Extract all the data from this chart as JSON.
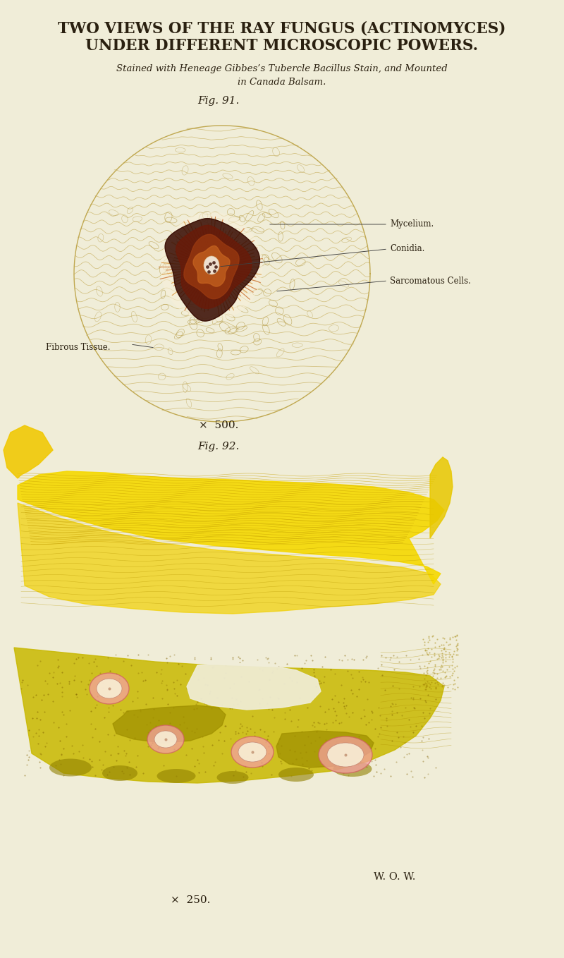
{
  "bg_color": "#f0edd8",
  "title_line1": "TWO VIEWS OF THE RAY FUNGUS (ACTINOMYCES)",
  "title_line2": "UNDER DIFFERENT MICROSCOPIC POWERS.",
  "subtitle_line1": "Stained with Heneage Gibbes’s Tubercle Bacillus Stain, and Mounted",
  "subtitle_line2": "in Canada Balsam.",
  "fig91_label": "Fig. 91.",
  "fig92_label": "Fig. 92.",
  "magnification1": "×  500.",
  "magnification2": "×  250.",
  "credit": "W. O. W.",
  "text_color": "#2a2010",
  "line_color": "#9a8a50",
  "fungus_dark": "#3a0f05",
  "fungus_maroon": "#6a1a08",
  "fungus_brown": "#9b3a10",
  "fungus_orange": "#c86520",
  "fungus_gold": "#d89030",
  "fungus_center": "#f5ede0",
  "circle_color": "#c0a850",
  "wave_color": "#c8b060",
  "cell_color": "#b8a050",
  "yellow_bright": "#f5d800",
  "yellow_mid": "#e8c800",
  "yellow_dark": "#c8a800",
  "yellow_green": "#b8b010",
  "olive_green": "#909000",
  "pink_colony": "#f08080",
  "pink_ring": "#e06060"
}
